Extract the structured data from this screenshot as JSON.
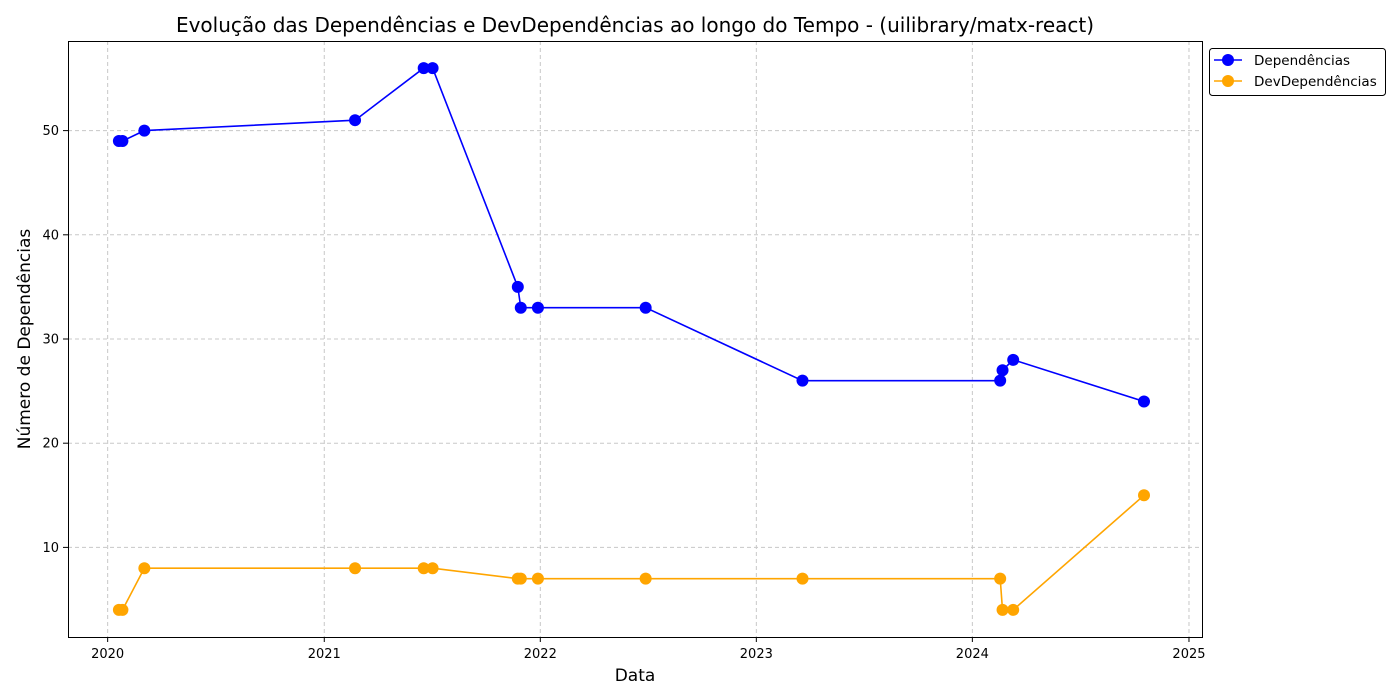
{
  "chart_data": {
    "type": "line",
    "title": "Evolução das Dependências e DevDependências ao longo do Tempo - (uilibrary/matx-react)",
    "xlabel": "Data",
    "ylabel": "Número de Dependências",
    "x_ticks": [
      "2020",
      "2021",
      "2022",
      "2023",
      "2024",
      "2025"
    ],
    "x_range": [
      "2019-10-26",
      "2025-01-23"
    ],
    "y_ticks": [
      10,
      20,
      30,
      40,
      50
    ],
    "ylim": [
      1.4,
      58.6
    ],
    "grid": true,
    "legend_position": "top-right (outside)",
    "x": [
      "2020-01-20",
      "2020-01-26",
      "2020-03-03",
      "2021-02-22",
      "2021-06-18",
      "2021-07-03",
      "2021-11-24",
      "2021-11-29",
      "2021-12-28",
      "2022-06-28",
      "2023-03-20",
      "2024-02-17",
      "2024-02-21",
      "2024-03-10",
      "2024-10-17"
    ],
    "series": [
      {
        "name": "Dependências",
        "color": "#0000ff",
        "values": [
          49,
          49,
          50,
          51,
          56,
          56,
          35,
          33,
          33,
          33,
          26,
          26,
          27,
          28,
          24
        ]
      },
      {
        "name": "DevDependências",
        "color": "#ffa500",
        "values": [
          4,
          4,
          8,
          8,
          8,
          8,
          7,
          7,
          7,
          7,
          7,
          7,
          4,
          4,
          15
        ]
      }
    ]
  }
}
